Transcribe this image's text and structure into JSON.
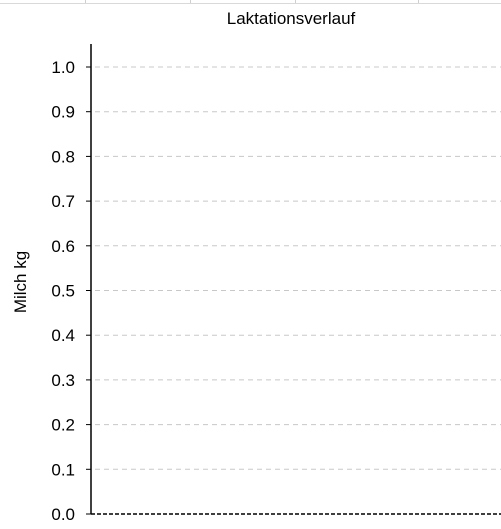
{
  "chart_data": {
    "type": "line",
    "title": "Laktationsverlauf",
    "xlabel": "",
    "ylabel": "Milch kg",
    "ylim": [
      0,
      1.0
    ],
    "y_ticks": [
      "0.0",
      "0.1",
      "0.2",
      "0.3",
      "0.4",
      "0.5",
      "0.6",
      "0.7",
      "0.8",
      "0.9",
      "1.0"
    ],
    "grid": true,
    "legend": "none",
    "series": []
  },
  "colors": {
    "axis": "#000000",
    "grid": "#c8c8c8"
  }
}
